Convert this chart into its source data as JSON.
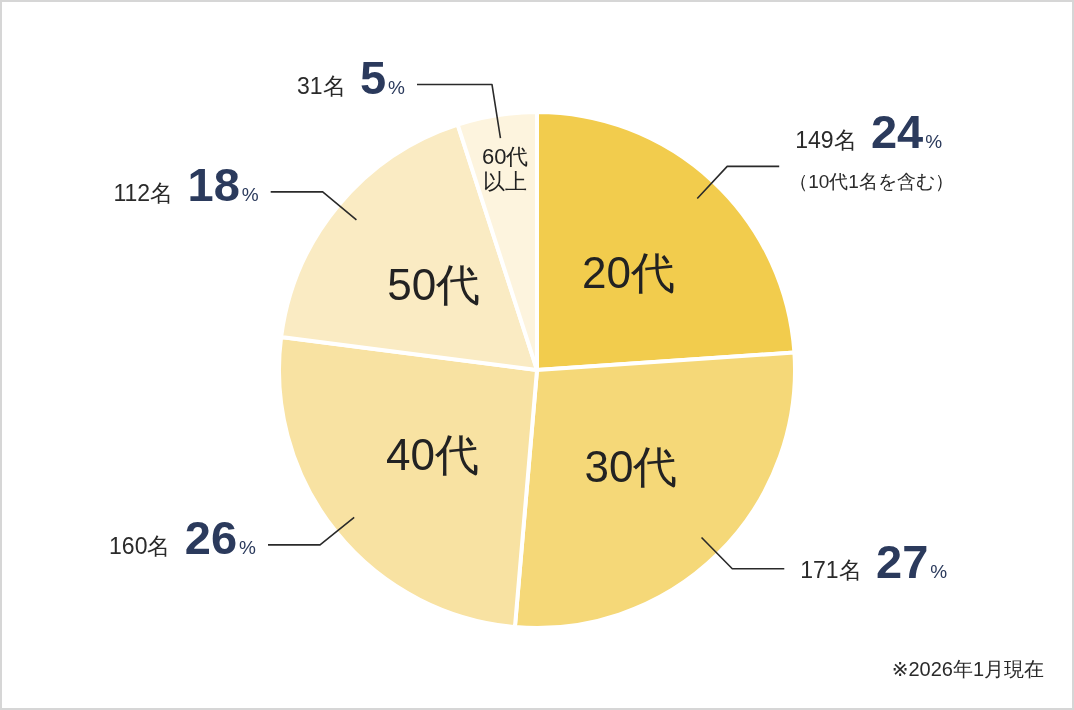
{
  "chart_data": {
    "type": "pie",
    "categories": [
      "20代",
      "30代",
      "40代",
      "50代",
      "60代以上"
    ],
    "values": [
      149,
      171,
      160,
      112,
      31
    ],
    "value_labels": [
      "149名 24%",
      "171名 27%",
      "160名 26%",
      "112名 18%",
      "31名 5%"
    ],
    "colors": [
      "#f2cc4d",
      "#f5d878",
      "#f8e2a2",
      "#faebc3",
      "#fdf4de"
    ],
    "annotations": [
      {
        "text": "（10代1名を含む）",
        "x": "20代"
      },
      "※2026年1月現在"
    ]
  }
}
